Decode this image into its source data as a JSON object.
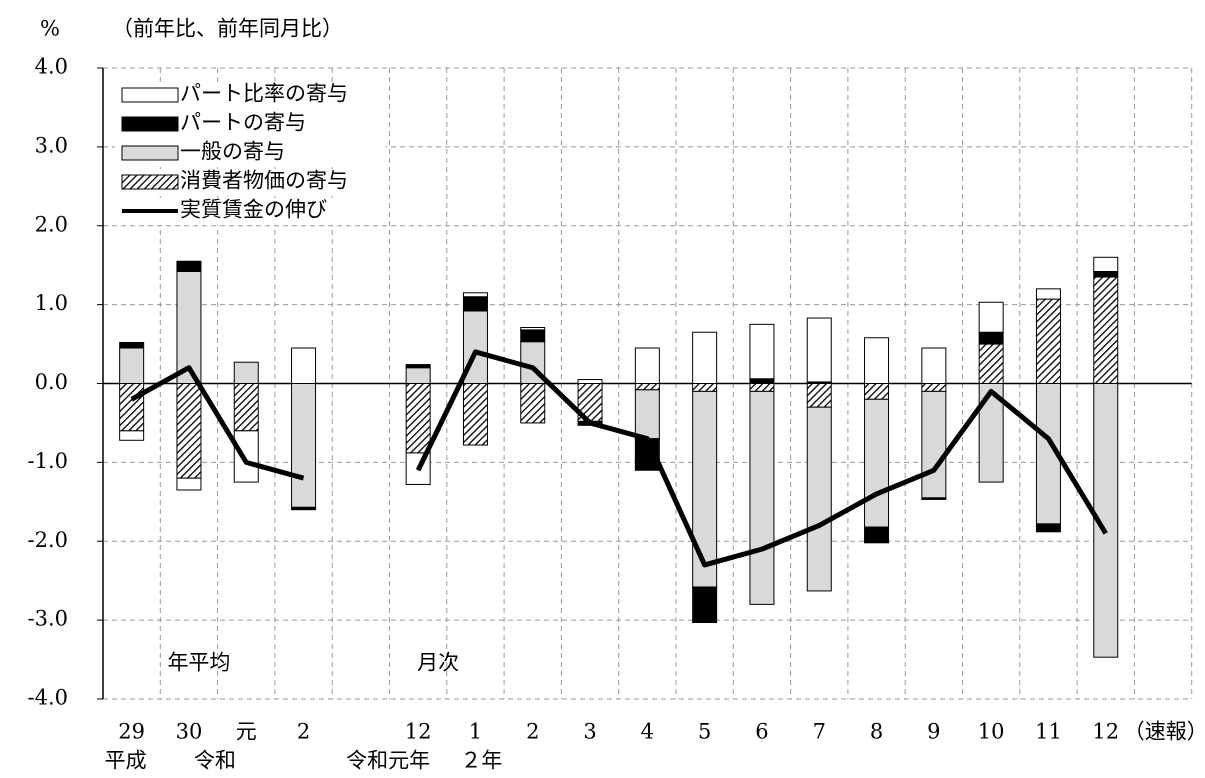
{
  "chart_data": {
    "type": "bar",
    "y_label": "%",
    "subtitle": "（前年比、前年同月比）",
    "annotations": [
      "年平均",
      "月次"
    ],
    "note": "（速報）",
    "era_labels": [
      "平成",
      "令和",
      "令和元年",
      "２年"
    ],
    "categories": [
      "29",
      "30",
      "元",
      "2",
      null,
      "12",
      "1",
      "2",
      "3",
      "4",
      "5",
      "6",
      "7",
      "8",
      "9",
      "10",
      "11",
      "12"
    ],
    "ylim": [
      -4,
      4
    ],
    "yticks": [
      {
        "value": -4,
        "label": "-4.0"
      },
      {
        "value": -3,
        "label": "-3.0"
      },
      {
        "value": -2,
        "label": "-2.0"
      },
      {
        "value": -1,
        "label": "-1.0"
      },
      {
        "value": 0,
        "label": "0.0"
      },
      {
        "value": 1,
        "label": "1.0"
      },
      {
        "value": 2,
        "label": "2.0"
      },
      {
        "value": 3,
        "label": "3.0"
      },
      {
        "value": 4,
        "label": "4.0"
      }
    ],
    "grid": true,
    "series": [
      {
        "name": "パート比率の寄与",
        "color": "#ffffff",
        "values": [
          -0.12,
          -0.15,
          -0.65,
          0.45,
          null,
          -0.4,
          0.05,
          0.03,
          0.05,
          0.45,
          0.65,
          0.69,
          0.81,
          0.58,
          0.45,
          0.38,
          0.13,
          0.18
        ]
      },
      {
        "name": "パートの寄与",
        "color": "#000000",
        "values": [
          0.07,
          0.13,
          0,
          -0.03,
          null,
          0.04,
          0.18,
          0.15,
          -0.05,
          -0.4,
          -0.45,
          0.06,
          0.02,
          -0.2,
          -0.02,
          0.15,
          -0.1,
          0.07
        ]
      },
      {
        "name": "一般の寄与",
        "color": "#d9d9d9",
        "values": [
          0.45,
          1.42,
          0.27,
          -1.57,
          null,
          0.2,
          0.92,
          0.53,
          0,
          -0.62,
          -2.48,
          -2.7,
          -2.33,
          -1.62,
          -1.35,
          -1.25,
          -1.78,
          -3.47
        ]
      },
      {
        "name": "消費者物価の寄与",
        "color": "#000000",
        "hatch": true,
        "values": [
          -0.6,
          -1.2,
          -0.6,
          0,
          null,
          -0.88,
          -0.78,
          -0.5,
          -0.48,
          -0.08,
          -0.1,
          -0.1,
          -0.3,
          -0.2,
          -0.1,
          0.5,
          1.07,
          1.35
        ]
      },
      {
        "name": "実質賃金の伸び",
        "type": "line",
        "color": "#000000",
        "values": [
          -0.2,
          0.2,
          -1.0,
          -1.2,
          null,
          -1.1,
          0.4,
          0.2,
          -0.5,
          -0.7,
          -2.3,
          -2.1,
          -1.8,
          -1.4,
          -1.1,
          -0.1,
          -0.7,
          -1.9
        ]
      }
    ]
  }
}
